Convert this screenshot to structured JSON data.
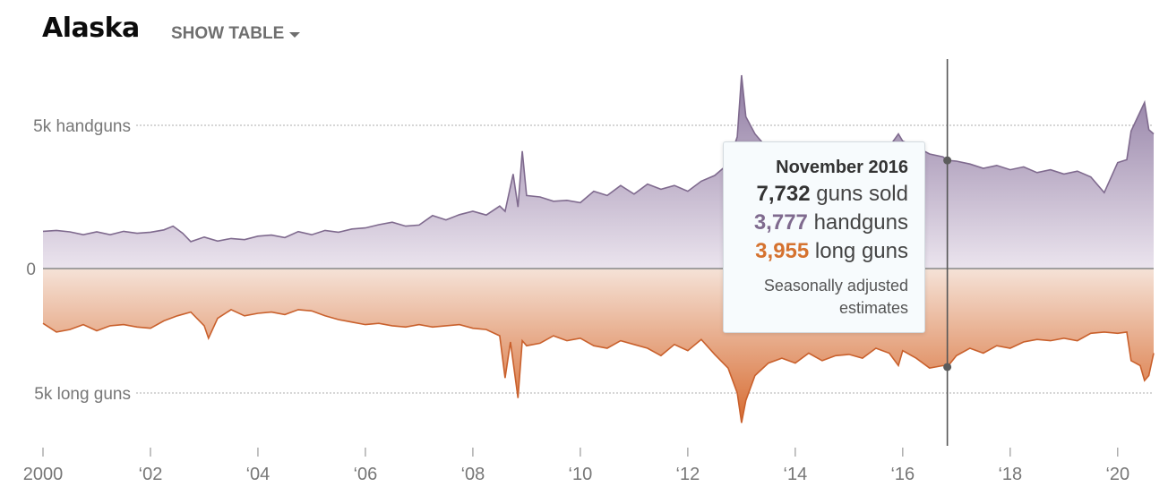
{
  "header": {
    "title": "Alaska",
    "show_table_label": "SHOW TABLE"
  },
  "colors": {
    "handguns_line": "#7f6a8e",
    "handguns_fill_top": "#8e7aa1",
    "handguns_fill_bottom": "#ebe4ee",
    "longguns_line": "#c9602c",
    "longguns_fill_top": "#f5e2d7",
    "longguns_fill_bottom": "#d76b30",
    "axis": "#888888",
    "text": "#777777"
  },
  "tooltip": {
    "date": "November 2016",
    "total_value": "7,732",
    "total_label": "guns sold",
    "handguns_value": "3,777",
    "handguns_label": "handguns",
    "longguns_value": "3,955",
    "longguns_label": "long guns",
    "note": "Seasonally adjusted estimates"
  },
  "chart_data": {
    "type": "area",
    "y_labels": {
      "top": "5k handguns",
      "zero": "0",
      "bottom": "5k long guns"
    },
    "x_ticks": [
      {
        "year": 2000,
        "label": "2000"
      },
      {
        "year": 2002,
        "label": "‘02"
      },
      {
        "year": 2004,
        "label": "‘04"
      },
      {
        "year": 2006,
        "label": "‘06"
      },
      {
        "year": 2008,
        "label": "‘08"
      },
      {
        "year": 2010,
        "label": "‘10"
      },
      {
        "year": 2012,
        "label": "‘12"
      },
      {
        "year": 2014,
        "label": "‘14"
      },
      {
        "year": 2016,
        "label": "‘16"
      },
      {
        "year": 2018,
        "label": "‘18"
      },
      {
        "year": 2020,
        "label": "‘20"
      }
    ],
    "x_range": [
      2000,
      2020.67
    ],
    "y_range": [
      -6200,
      6700
    ],
    "highlight": {
      "date": 2016.83,
      "handguns": 3777,
      "longguns": 3955
    },
    "series": [
      {
        "name": "handguns",
        "points": [
          [
            2000.0,
            1300
          ],
          [
            2000.25,
            1330
          ],
          [
            2000.5,
            1280
          ],
          [
            2000.75,
            1180
          ],
          [
            2001.0,
            1280
          ],
          [
            2001.25,
            1180
          ],
          [
            2001.5,
            1300
          ],
          [
            2001.75,
            1230
          ],
          [
            2002.0,
            1270
          ],
          [
            2002.25,
            1350
          ],
          [
            2002.42,
            1480
          ],
          [
            2002.6,
            1230
          ],
          [
            2002.75,
            940
          ],
          [
            2003.0,
            1100
          ],
          [
            2003.25,
            960
          ],
          [
            2003.5,
            1050
          ],
          [
            2003.75,
            1010
          ],
          [
            2004.0,
            1130
          ],
          [
            2004.25,
            1170
          ],
          [
            2004.5,
            1080
          ],
          [
            2004.75,
            1290
          ],
          [
            2005.0,
            1180
          ],
          [
            2005.25,
            1330
          ],
          [
            2005.5,
            1270
          ],
          [
            2005.75,
            1380
          ],
          [
            2006.0,
            1420
          ],
          [
            2006.25,
            1530
          ],
          [
            2006.5,
            1620
          ],
          [
            2006.75,
            1480
          ],
          [
            2007.0,
            1520
          ],
          [
            2007.25,
            1850
          ],
          [
            2007.5,
            1700
          ],
          [
            2007.75,
            1880
          ],
          [
            2008.0,
            2000
          ],
          [
            2008.25,
            1870
          ],
          [
            2008.5,
            2180
          ],
          [
            2008.6,
            2000
          ],
          [
            2008.75,
            3300
          ],
          [
            2008.84,
            2150
          ],
          [
            2008.92,
            4100
          ],
          [
            2009.0,
            2550
          ],
          [
            2009.25,
            2500
          ],
          [
            2009.5,
            2350
          ],
          [
            2009.75,
            2380
          ],
          [
            2010.0,
            2300
          ],
          [
            2010.25,
            2700
          ],
          [
            2010.5,
            2550
          ],
          [
            2010.75,
            2900
          ],
          [
            2011.0,
            2600
          ],
          [
            2011.25,
            2950
          ],
          [
            2011.5,
            2770
          ],
          [
            2011.75,
            2900
          ],
          [
            2012.0,
            2700
          ],
          [
            2012.25,
            3050
          ],
          [
            2012.5,
            3250
          ],
          [
            2012.75,
            3650
          ],
          [
            2012.92,
            4600
          ],
          [
            2013.0,
            6750
          ],
          [
            2013.08,
            5300
          ],
          [
            2013.25,
            4700
          ],
          [
            2013.5,
            4150
          ],
          [
            2013.75,
            4000
          ],
          [
            2014.0,
            3700
          ],
          [
            2014.25,
            3850
          ],
          [
            2014.5,
            3800
          ],
          [
            2014.75,
            3700
          ],
          [
            2015.0,
            3850
          ],
          [
            2015.25,
            3900
          ],
          [
            2015.5,
            4050
          ],
          [
            2015.75,
            4250
          ],
          [
            2015.92,
            4700
          ],
          [
            2016.0,
            4450
          ],
          [
            2016.25,
            4250
          ],
          [
            2016.5,
            4000
          ],
          [
            2016.75,
            3900
          ],
          [
            2016.83,
            3777
          ],
          [
            2017.0,
            3750
          ],
          [
            2017.25,
            3650
          ],
          [
            2017.5,
            3500
          ],
          [
            2017.75,
            3600
          ],
          [
            2018.0,
            3450
          ],
          [
            2018.25,
            3550
          ],
          [
            2018.5,
            3350
          ],
          [
            2018.75,
            3450
          ],
          [
            2019.0,
            3300
          ],
          [
            2019.25,
            3400
          ],
          [
            2019.5,
            3200
          ],
          [
            2019.75,
            2650
          ],
          [
            2020.0,
            3700
          ],
          [
            2020.17,
            3800
          ],
          [
            2020.25,
            4800
          ],
          [
            2020.5,
            5800
          ],
          [
            2020.58,
            4850
          ],
          [
            2020.67,
            4700
          ]
        ]
      },
      {
        "name": "long guns",
        "points": [
          [
            2000.0,
            2200
          ],
          [
            2000.25,
            2550
          ],
          [
            2000.5,
            2450
          ],
          [
            2000.75,
            2250
          ],
          [
            2001.0,
            2500
          ],
          [
            2001.25,
            2300
          ],
          [
            2001.5,
            2250
          ],
          [
            2001.75,
            2350
          ],
          [
            2002.0,
            2400
          ],
          [
            2002.25,
            2100
          ],
          [
            2002.5,
            1900
          ],
          [
            2002.75,
            1750
          ],
          [
            2003.0,
            2300
          ],
          [
            2003.08,
            2800
          ],
          [
            2003.25,
            2000
          ],
          [
            2003.5,
            1650
          ],
          [
            2003.75,
            1900
          ],
          [
            2004.0,
            1800
          ],
          [
            2004.25,
            1750
          ],
          [
            2004.5,
            1850
          ],
          [
            2004.75,
            1650
          ],
          [
            2005.0,
            1700
          ],
          [
            2005.25,
            1900
          ],
          [
            2005.5,
            2050
          ],
          [
            2005.75,
            2150
          ],
          [
            2006.0,
            2250
          ],
          [
            2006.25,
            2200
          ],
          [
            2006.5,
            2300
          ],
          [
            2006.75,
            2350
          ],
          [
            2007.0,
            2250
          ],
          [
            2007.25,
            2350
          ],
          [
            2007.5,
            2300
          ],
          [
            2007.75,
            2250
          ],
          [
            2008.0,
            2400
          ],
          [
            2008.25,
            2450
          ],
          [
            2008.5,
            2700
          ],
          [
            2008.6,
            4400
          ],
          [
            2008.7,
            2950
          ],
          [
            2008.84,
            5200
          ],
          [
            2008.92,
            2900
          ],
          [
            2009.0,
            3100
          ],
          [
            2009.25,
            3000
          ],
          [
            2009.5,
            2700
          ],
          [
            2009.75,
            2900
          ],
          [
            2010.0,
            2800
          ],
          [
            2010.25,
            3100
          ],
          [
            2010.5,
            3200
          ],
          [
            2010.75,
            2900
          ],
          [
            2011.0,
            3050
          ],
          [
            2011.25,
            3200
          ],
          [
            2011.5,
            3500
          ],
          [
            2011.75,
            3050
          ],
          [
            2012.0,
            3300
          ],
          [
            2012.25,
            2850
          ],
          [
            2012.5,
            3450
          ],
          [
            2012.75,
            4000
          ],
          [
            2012.92,
            5000
          ],
          [
            2013.0,
            6200
          ],
          [
            2013.08,
            5300
          ],
          [
            2013.25,
            4300
          ],
          [
            2013.5,
            3800
          ],
          [
            2013.75,
            3600
          ],
          [
            2014.0,
            3800
          ],
          [
            2014.25,
            3400
          ],
          [
            2014.5,
            3700
          ],
          [
            2014.75,
            3500
          ],
          [
            2015.0,
            3450
          ],
          [
            2015.25,
            3600
          ],
          [
            2015.5,
            3200
          ],
          [
            2015.75,
            3400
          ],
          [
            2015.92,
            3900
          ],
          [
            2016.0,
            3300
          ],
          [
            2016.25,
            3600
          ],
          [
            2016.5,
            4000
          ],
          [
            2016.75,
            3900
          ],
          [
            2016.83,
            3955
          ],
          [
            2017.0,
            3500
          ],
          [
            2017.25,
            3200
          ],
          [
            2017.5,
            3400
          ],
          [
            2017.75,
            3100
          ],
          [
            2018.0,
            3200
          ],
          [
            2018.25,
            2950
          ],
          [
            2018.5,
            2850
          ],
          [
            2018.75,
            2900
          ],
          [
            2019.0,
            2800
          ],
          [
            2019.25,
            2900
          ],
          [
            2019.5,
            2600
          ],
          [
            2019.75,
            2550
          ],
          [
            2020.0,
            2600
          ],
          [
            2020.17,
            2550
          ],
          [
            2020.25,
            3700
          ],
          [
            2020.42,
            3900
          ],
          [
            2020.5,
            4500
          ],
          [
            2020.58,
            4300
          ],
          [
            2020.67,
            3400
          ]
        ]
      }
    ]
  }
}
